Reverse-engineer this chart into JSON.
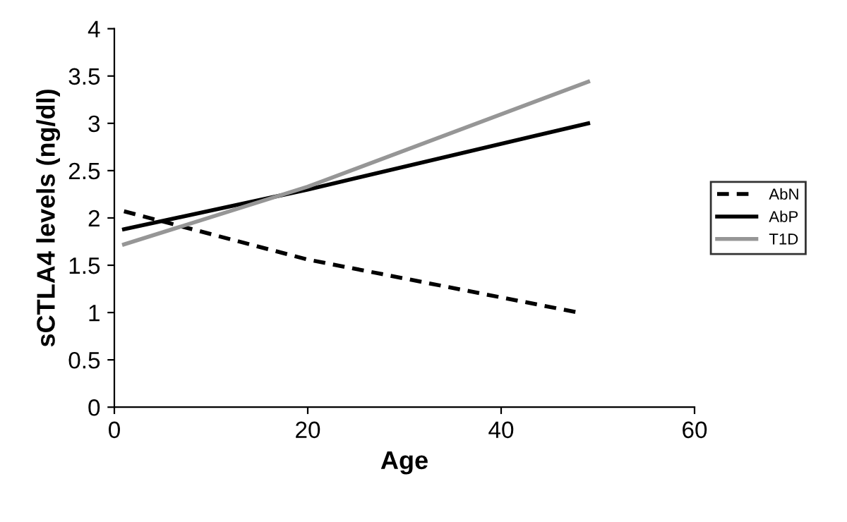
{
  "chart_data": {
    "type": "line",
    "xlabel": "Age",
    "ylabel": "sCTLA4 levels (ng/dl)",
    "xlim": [
      0,
      60
    ],
    "xticks": [
      0,
      20,
      40,
      60
    ],
    "ylim": [
      0,
      4
    ],
    "yticks": [
      0,
      0.5,
      1,
      1.5,
      2,
      2.5,
      3,
      3.5,
      4
    ],
    "grid": false,
    "legend": "right",
    "marker": "none",
    "series": [
      {
        "name": "AbN",
        "color": "#000000",
        "line_style": "dashed",
        "x": [
          1,
          20,
          48
        ],
        "values": [
          2.07,
          1.56,
          1.0
        ]
      },
      {
        "name": "AbP",
        "color": "#000000",
        "line_style": "solid",
        "x": [
          1,
          20,
          49
        ],
        "values": [
          1.88,
          2.3,
          3.0
        ]
      },
      {
        "name": "T1D",
        "color": "#969696",
        "line_style": "solid",
        "x": [
          1,
          20,
          49
        ],
        "values": [
          1.72,
          2.33,
          3.44
        ]
      }
    ]
  }
}
